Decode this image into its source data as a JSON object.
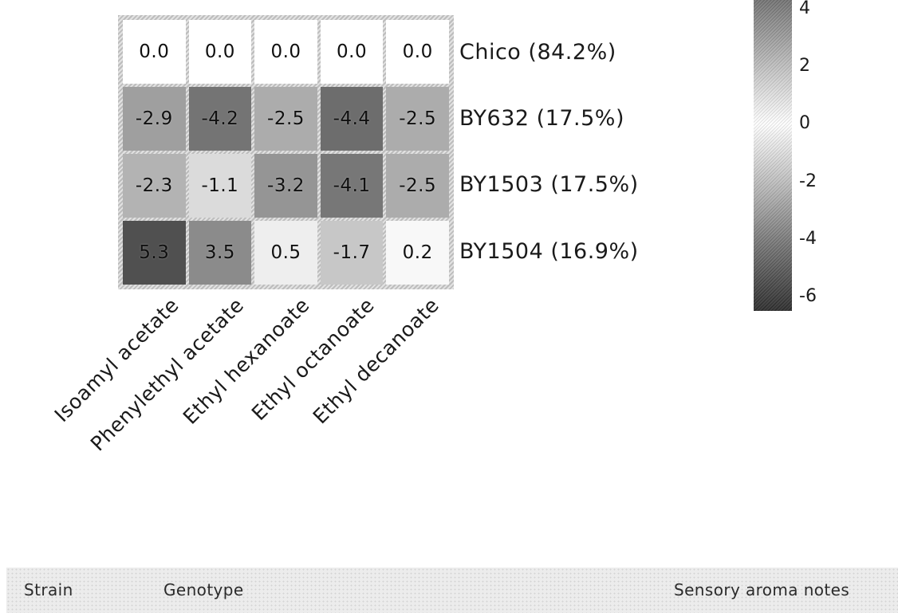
{
  "chart_data": {
    "type": "heatmap",
    "title": "",
    "categories": [
      "Isoamyl acetate",
      "Phenylethyl acetate",
      "Ethyl hexanoate",
      "Ethyl octanoate",
      "Ethyl decanoate"
    ],
    "rows": [
      {
        "label": "Chico (84.2%)",
        "values": [
          0.0,
          0.0,
          0.0,
          0.0,
          0.0
        ],
        "display": [
          "0.0",
          "0.0",
          "0.0",
          "0.0",
          "0.0"
        ]
      },
      {
        "label": "BY632 (17.5%)",
        "values": [
          -2.9,
          -4.2,
          -2.5,
          -4.4,
          -2.5
        ],
        "display": [
          "-2.9",
          "-4.2",
          "-2.5",
          "-4.4",
          "-2.5"
        ]
      },
      {
        "label": "BY1503 (17.5%)",
        "values": [
          -2.3,
          -1.1,
          -3.2,
          -4.1,
          -2.5
        ],
        "display": [
          "-2.3",
          "-1.1",
          "-3.2",
          "-4.1",
          "-2.5"
        ]
      },
      {
        "label": "BY1504 (16.9%)",
        "values": [
          5.3,
          3.5,
          0.5,
          -1.7,
          0.2
        ],
        "display": [
          "5.3",
          "3.5",
          "0.5",
          "-1.7",
          "0.2"
        ]
      }
    ],
    "colorbar": {
      "position": "right",
      "tick_labels": [
        "4",
        "2",
        "0",
        "-2",
        "-4",
        "-6"
      ],
      "tick_values": [
        4,
        2,
        0,
        -2,
        -4,
        -6
      ],
      "vmax_visible": 4.3,
      "vmin_visible": -6.5
    },
    "layout": {
      "grid_lines": "light",
      "row_labels_side": "right",
      "x_label_rotation_deg": 45
    }
  },
  "table_header": {
    "columns": [
      "Strain",
      "Genotype",
      "Sensory aroma notes"
    ]
  },
  "colors": {
    "cell_zero": "#ffffff",
    "cell_extreme_dark": "#282828",
    "text": "#161616",
    "band_bg": "#ececec"
  }
}
